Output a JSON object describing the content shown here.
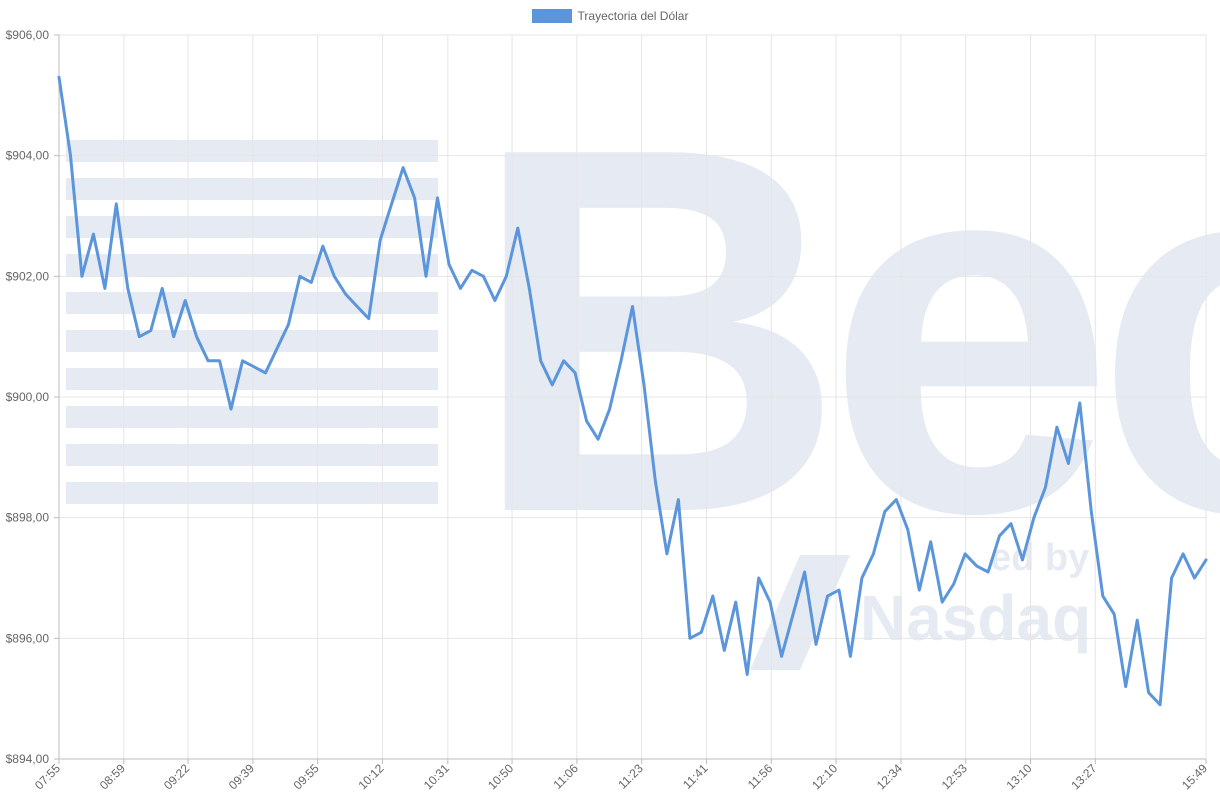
{
  "chart_data": {
    "type": "line",
    "legend": {
      "label": "Trayectoria del Dólar",
      "position": "top-center"
    },
    "series": [
      {
        "name": "Trayectoria del Dólar",
        "color": "#5b95dc",
        "x_index": [
          0,
          2,
          4,
          6,
          8,
          10,
          12,
          14,
          16,
          18,
          20,
          22,
          24,
          26,
          28,
          30,
          32,
          34,
          36,
          38,
          40,
          42,
          44,
          46,
          48,
          50,
          52,
          54,
          56,
          58,
          60,
          62,
          64,
          66,
          68,
          70,
          72,
          74,
          76,
          78,
          80,
          82,
          84,
          86,
          88,
          90,
          92,
          94,
          96,
          98,
          100,
          102,
          104,
          106,
          108,
          110,
          112,
          114,
          116,
          118,
          120,
          122,
          124,
          126,
          128,
          130,
          132,
          134,
          136,
          138,
          140,
          142,
          144,
          146,
          148,
          150,
          152,
          154,
          156,
          158,
          160,
          162,
          164,
          166,
          168,
          170,
          172,
          174,
          176,
          178,
          180,
          182,
          184,
          186,
          188,
          190,
          192,
          194,
          196,
          198,
          200
        ],
        "values": [
          905.3,
          904.0,
          902.0,
          902.7,
          901.8,
          903.2,
          901.8,
          901.0,
          901.1,
          901.8,
          901.0,
          901.6,
          901.0,
          900.6,
          900.6,
          899.8,
          900.6,
          900.5,
          900.4,
          900.8,
          901.2,
          902.0,
          901.9,
          902.5,
          902.0,
          901.7,
          901.5,
          901.3,
          902.6,
          903.2,
          903.8,
          903.3,
          902.0,
          903.3,
          902.2,
          901.8,
          902.1,
          902.0,
          901.6,
          902.0,
          902.8,
          901.8,
          900.6,
          900.2,
          900.6,
          900.4,
          899.6,
          899.3,
          899.8,
          900.6,
          901.5,
          900.2,
          898.6,
          897.4,
          898.3,
          896.0,
          896.1,
          896.7,
          895.8,
          896.6,
          895.4,
          897.0,
          896.6,
          895.7,
          896.4,
          897.1,
          895.9,
          896.7,
          896.8,
          895.7,
          897.0,
          897.4,
          898.1,
          898.3,
          897.8,
          896.8,
          897.6,
          896.6,
          896.9,
          897.4,
          897.2,
          897.1,
          897.7,
          897.9,
          897.3,
          898.0,
          898.5,
          899.5,
          898.9,
          899.9,
          898.1,
          896.7,
          896.4,
          895.2,
          896.3,
          895.1,
          894.9,
          897.0,
          897.4,
          897.0,
          897.3
        ]
      }
    ],
    "xlim": [
      0,
      200
    ],
    "ylim": [
      894,
      906
    ],
    "y_ticks": [
      894,
      896,
      898,
      900,
      902,
      904,
      906
    ],
    "y_tick_labels": [
      "$894,00",
      "$896,00",
      "$898,00",
      "$900,00",
      "$902,00",
      "$904,00",
      "$906,00"
    ],
    "x_ticks": [
      {
        "label": "07:55",
        "index": 0
      },
      {
        "label": "08:59",
        "index": 11.3
      },
      {
        "label": "09:22",
        "index": 22.5
      },
      {
        "label": "09:39",
        "index": 33.8
      },
      {
        "label": "09:55",
        "index": 45.1
      },
      {
        "label": "10:12",
        "index": 56.4
      },
      {
        "label": "10:31",
        "index": 67.8
      },
      {
        "label": "10:50",
        "index": 79.0
      },
      {
        "label": "11:06",
        "index": 90.3
      },
      {
        "label": "11:23",
        "index": 101.6
      },
      {
        "label": "11:41",
        "index": 112.9
      },
      {
        "label": "11:56",
        "index": 124.2
      },
      {
        "label": "12:10",
        "index": 135.5
      },
      {
        "label": "12:34",
        "index": 146.8
      },
      {
        "label": "12:53",
        "index": 158.1
      },
      {
        "label": "13:10",
        "index": 169.4
      },
      {
        "label": "13:27",
        "index": 180.7
      },
      {
        "label": "15:49",
        "index": 200
      }
    ],
    "grid": true,
    "axis_label_color": "#666666",
    "grid_color": "#e5e5e5",
    "watermark": {
      "letters": "Bec",
      "sub_text_partial": "ed by",
      "sub_text_2": "Nasdaq",
      "color": "#e6ebf3"
    }
  }
}
